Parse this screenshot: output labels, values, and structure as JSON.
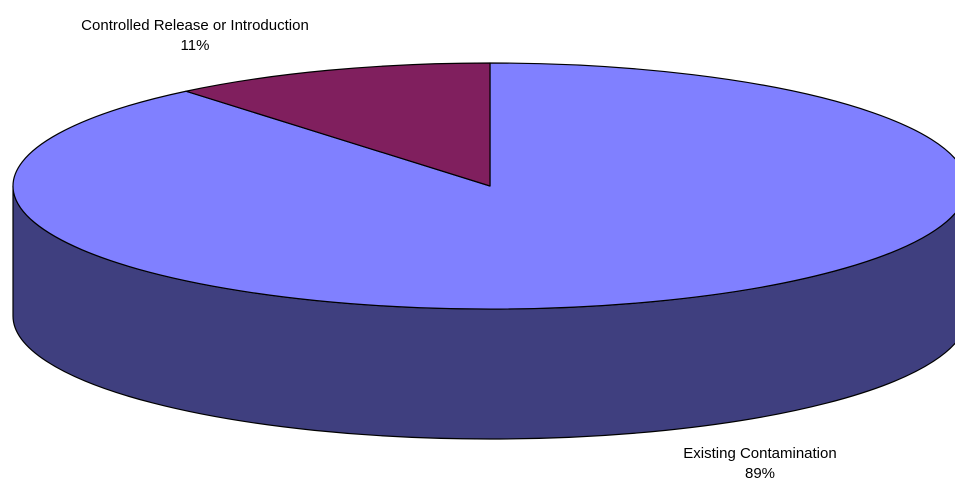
{
  "chart_data": {
    "type": "pie",
    "title": "",
    "style": "3d",
    "slices": [
      {
        "label": "Existing Contamination",
        "value": 89,
        "value_label": "89%",
        "color": "#8080FF",
        "side_color": "#3F3F7F"
      },
      {
        "label": "Controlled Release or Introduction",
        "value": 11,
        "value_label": "11%",
        "color": "#801F5E",
        "side_color": "#40102F"
      }
    ]
  }
}
